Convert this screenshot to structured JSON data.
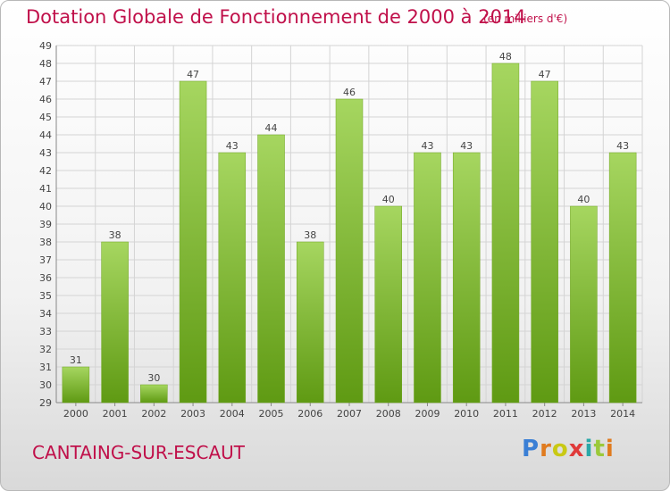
{
  "header": {
    "title": "Dotation Globale de Fonctionnement de 2000 à 2014",
    "unit": "(en milliers d'€)"
  },
  "footer": {
    "commune": "CANTAING-SUR-ESCAUT",
    "logo_text": "Proxiti",
    "logo_colors": [
      "#3a7fd5",
      "#e07b1f",
      "#c9c914",
      "#e03a3a",
      "#2aa8a8",
      "#9bc93a",
      "#e07b1f"
    ]
  },
  "colors": {
    "accent": "#c0104a",
    "bar_light": "#a6d660",
    "bar_dark": "#5f9a13"
  },
  "chart_data": {
    "type": "bar",
    "title": "Dotation Globale de Fonctionnement de 2000 à 2014",
    "subtitle": "(en milliers d'€)",
    "xlabel": "",
    "ylabel": "",
    "categories": [
      "2000",
      "2001",
      "2002",
      "2003",
      "2004",
      "2005",
      "2006",
      "2007",
      "2008",
      "2009",
      "2010",
      "2011",
      "2012",
      "2013",
      "2014"
    ],
    "values": [
      31,
      38,
      30,
      47,
      43,
      44,
      38,
      46,
      40,
      43,
      43,
      48,
      47,
      40,
      43
    ],
    "ylim": [
      29,
      49
    ],
    "yticks": [
      29,
      30,
      31,
      32,
      33,
      34,
      35,
      36,
      37,
      38,
      39,
      40,
      41,
      42,
      43,
      44,
      45,
      46,
      47,
      48,
      49
    ],
    "grid": true,
    "data_labels": true
  }
}
